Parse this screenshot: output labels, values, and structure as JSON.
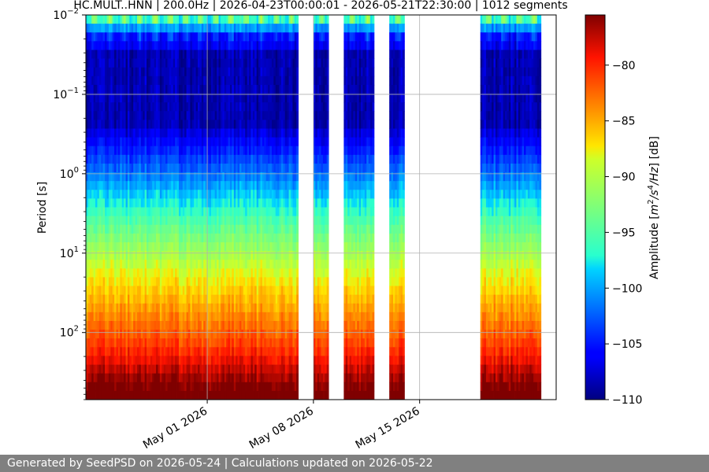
{
  "chart_data": {
    "type": "heatmap",
    "title": "HC.MULT..HNN | 200.0Hz | 2026-04-23T00:00:01 - 2026-05-21T22:30:00 | 1012 segments",
    "ylabel": "Period [s]",
    "y_scale": "log",
    "y_inverted": true,
    "ylim": [
      0.01,
      700
    ],
    "y_ticks": [
      {
        "base": "10",
        "exp": "−2",
        "value": 0.01
      },
      {
        "base": "10",
        "exp": "−1",
        "value": 0.1
      },
      {
        "base": "10",
        "exp": "0",
        "value": 1
      },
      {
        "base": "10",
        "exp": "1",
        "value": 10
      },
      {
        "base": "10",
        "exp": "2",
        "value": 100
      }
    ],
    "x_range": [
      "2026-04-23",
      "2026-05-24"
    ],
    "x_ticks": [
      {
        "label": "May 01 2026",
        "date": "2026-05-01"
      },
      {
        "label": "May 08 2026",
        "date": "2026-05-08"
      },
      {
        "label": "May 15 2026",
        "date": "2026-05-15"
      }
    ],
    "grid": true,
    "data_intervals": [
      [
        "2026-04-23",
        "2026-05-07"
      ],
      [
        "2026-05-08",
        "2026-05-09"
      ],
      [
        "2026-05-10",
        "2026-05-12"
      ],
      [
        "2026-05-13",
        "2026-05-14"
      ],
      [
        "2026-05-19",
        "2026-05-23"
      ]
    ],
    "colorbar": {
      "label_prefix": "Amplitude [",
      "label_m": "m",
      "label_m_exp": "2",
      "label_sep": "/s",
      "label_s_exp": "4",
      "label_hz": "/Hz",
      "label_suffix": "] [dB]",
      "range": [
        -110,
        -75.5
      ],
      "ticks": [
        "−80",
        "−85",
        "−90",
        "−95",
        "−100",
        "−105",
        "−110"
      ],
      "tick_values": [
        -80,
        -85,
        -90,
        -95,
        -100,
        -105,
        -110
      ],
      "colormap": "jet"
    }
  },
  "footer": {
    "text": "Generated by SeedPSD on 2026-05-24 | Calculations updated on 2026-05-22"
  }
}
